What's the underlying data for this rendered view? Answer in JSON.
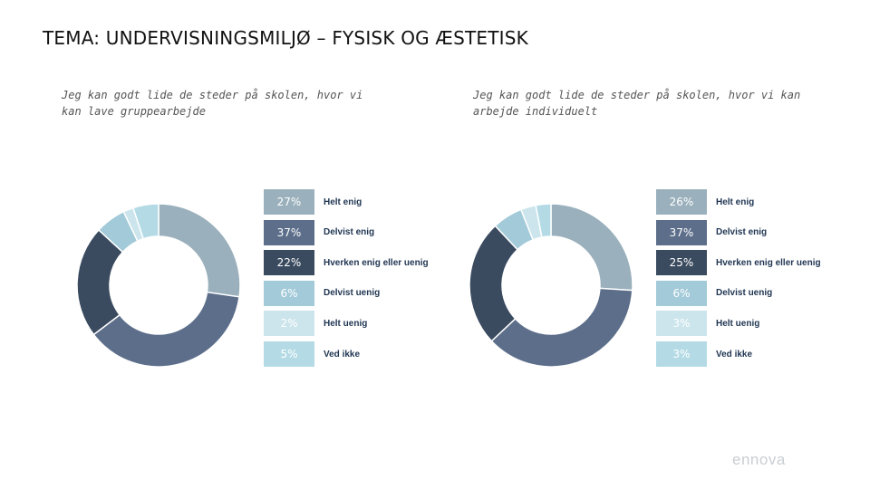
{
  "title": "TEMA: UNDERVISNINGSMILJØ – FYSISK OG ÆSTETISK",
  "brand": "ennova",
  "chart_data": [
    {
      "type": "pie",
      "title": "Jeg kan godt lide de steder på skolen, hvor vi kan lave gruppearbejde",
      "categories": [
        "Helt enig",
        "Delvist enig",
        "Hverken enig eller uenig",
        "Delvist uenig",
        "Helt uenig",
        "Ved ikke"
      ],
      "values": [
        27,
        37,
        22,
        6,
        2,
        5
      ],
      "value_labels": [
        "27%",
        "37%",
        "22%",
        "6%",
        "2%",
        "5%"
      ],
      "colors": [
        "#9ab0bc",
        "#5c6e8a",
        "#3a4a5f",
        "#a2cad8",
        "#cce5ec",
        "#b4dbe5"
      ],
      "donut": true
    },
    {
      "type": "pie",
      "title": "Jeg kan godt lide de steder på skolen, hvor vi kan arbejde individuelt",
      "categories": [
        "Helt enig",
        "Delvist enig",
        "Hverken enig eller uenig",
        "Delvist uenig",
        "Helt uenig",
        "Ved ikke"
      ],
      "values": [
        26,
        37,
        25,
        6,
        3,
        3
      ],
      "value_labels": [
        "26%",
        "37%",
        "25%",
        "6%",
        "3%",
        "3%"
      ],
      "colors": [
        "#9ab0bc",
        "#5c6e8a",
        "#3a4a5f",
        "#a2cad8",
        "#cce5ec",
        "#b4dbe5"
      ],
      "donut": true
    }
  ]
}
